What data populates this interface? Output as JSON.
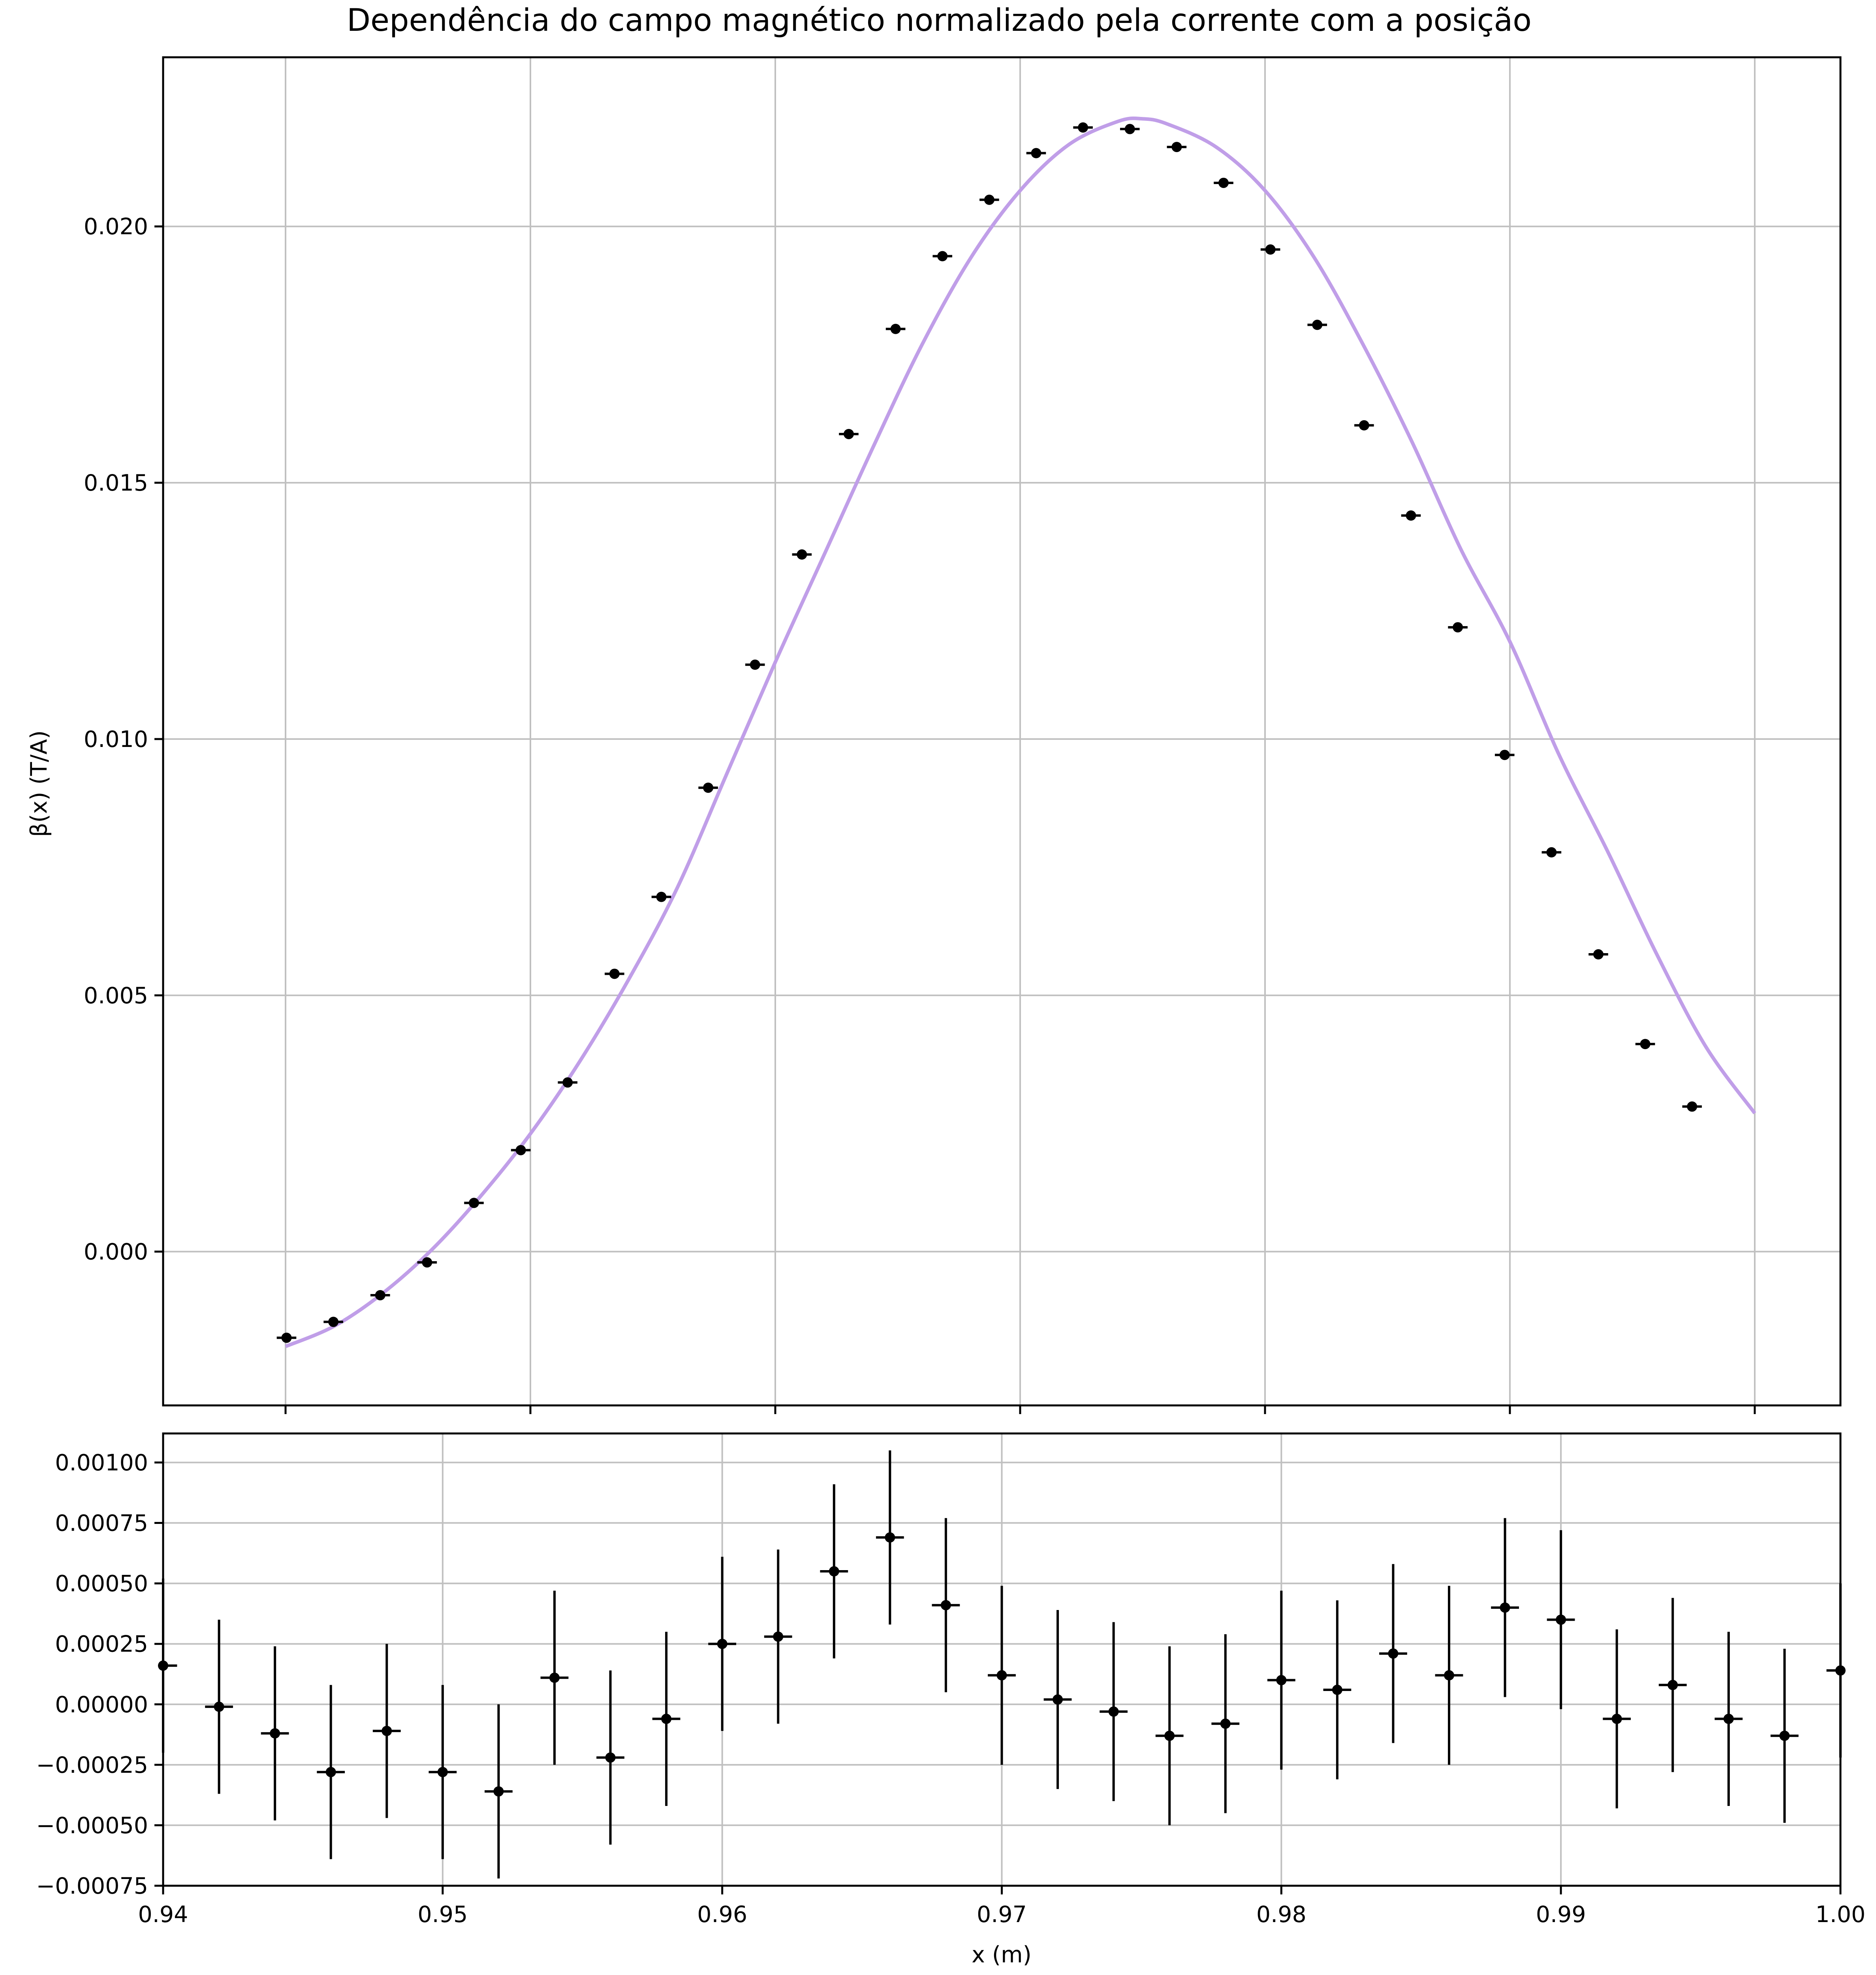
{
  "chart_data": [
    {
      "type": "scatter",
      "title": "Dependência do campo magnético normalizado pela corrente com a posição",
      "xlabel": "",
      "ylabel": "β(x) (T/A)",
      "xlim": [
        0.935,
        1.0035
      ],
      "ylim": [
        -0.003,
        0.0233
      ],
      "grid": true,
      "x_ticks": [
        0.94,
        0.95,
        0.96,
        0.97,
        0.98,
        0.99,
        1.0
      ],
      "y_ticks": [
        "0.000",
        "0.005",
        "0.010",
        "0.015",
        "0.020"
      ],
      "y_tick_values": [
        0.0,
        0.005,
        0.01,
        0.015,
        0.02
      ],
      "fit_color": "#c09ee8",
      "point_color": "#000000",
      "x_error": 0.0004,
      "points": {
        "x": [
          0.94,
          0.942,
          0.944,
          0.946,
          0.948,
          0.95,
          0.952,
          0.954,
          0.956,
          0.958,
          0.96,
          0.962,
          0.964,
          0.966,
          0.968,
          0.97,
          0.972,
          0.974,
          0.976,
          0.978,
          0.98,
          0.982,
          0.984,
          0.986,
          0.988,
          0.99,
          0.992,
          0.994,
          0.996,
          0.998,
          1.0
        ],
        "y": [
          -0.00168,
          -0.00137,
          -0.00085,
          -0.00021,
          0.00095,
          0.00198,
          0.0033,
          0.00542,
          0.00692,
          0.00905,
          0.01145,
          0.0136,
          0.01595,
          0.018,
          0.01942,
          0.02052,
          0.02143,
          0.02193,
          0.0219,
          0.02155,
          0.02085,
          0.01955,
          0.01808,
          0.01612,
          0.01436,
          0.01218,
          0.00969,
          0.00779,
          0.0058,
          0.00405,
          0.00283
        ]
      },
      "fit_curve": {
        "x": [
          0.94,
          0.942,
          0.944,
          0.946,
          0.948,
          0.95,
          0.952,
          0.954,
          0.956,
          0.958,
          0.96,
          0.962,
          0.964,
          0.966,
          0.968,
          0.97,
          0.972,
          0.974,
          0.975,
          0.976,
          0.978,
          0.98,
          0.982,
          0.984,
          0.986,
          0.988,
          0.99,
          0.992,
          0.994,
          0.996,
          0.998,
          1.0
        ],
        "y": [
          -0.00185,
          -0.00145,
          -0.0008,
          5e-05,
          0.0011,
          0.0023,
          0.0037,
          0.0053,
          0.0071,
          0.0093,
          0.0115,
          0.0136,
          0.0157,
          0.0177,
          0.0194,
          0.0207,
          0.0216,
          0.02205,
          0.0221,
          0.022,
          0.02155,
          0.0207,
          0.0194,
          0.0177,
          0.0158,
          0.0137,
          0.0119,
          0.0097,
          0.0078,
          0.0058,
          0.004,
          0.0027
        ]
      }
    },
    {
      "type": "scatter",
      "title": "",
      "xlabel": "x (m)",
      "ylabel": "",
      "xlim": [
        0.94,
        1.0
      ],
      "ylim": [
        -0.00075,
        0.00112
      ],
      "grid": true,
      "x_ticks": [
        "0.94",
        "0.95",
        "0.96",
        "0.97",
        "0.98",
        "0.99",
        "1.00"
      ],
      "x_tick_values": [
        0.94,
        0.95,
        0.96,
        0.97,
        0.98,
        0.99,
        1.0
      ],
      "y_ticks": [
        "−0.00075",
        "−0.00050",
        "−0.00025",
        "0.00000",
        "0.00025",
        "0.00050",
        "0.00075",
        "0.00100"
      ],
      "y_tick_values": [
        -0.00075,
        -0.0005,
        -0.00025,
        0.0,
        0.00025,
        0.0005,
        0.00075,
        0.001
      ],
      "x_error": 0.0005,
      "points": {
        "x": [
          0.94,
          0.942,
          0.944,
          0.946,
          0.948,
          0.95,
          0.952,
          0.954,
          0.956,
          0.958,
          0.96,
          0.962,
          0.964,
          0.966,
          0.968,
          0.97,
          0.972,
          0.974,
          0.976,
          0.978,
          0.98,
          0.982,
          0.984,
          0.986,
          0.988,
          0.99,
          0.992,
          0.994,
          0.996,
          0.998,
          1.0
        ],
        "y": [
          0.00016,
          -1e-05,
          -0.00012,
          -0.00028,
          -0.00011,
          -0.00028,
          -0.00036,
          0.00011,
          -0.00022,
          -6e-05,
          0.00025,
          0.00028,
          0.00055,
          0.00069,
          0.00041,
          0.00012,
          2e-05,
          -3e-05,
          -0.00013,
          -8e-05,
          0.0001,
          6e-05,
          0.00021,
          0.00012,
          0.0004,
          0.00035,
          -6e-05,
          8e-05,
          -6e-05,
          -0.00013,
          0.00014
        ],
        "y_error": [
          0.00036,
          0.00036,
          0.00036,
          0.00036,
          0.00036,
          0.00036,
          0.00036,
          0.00036,
          0.00036,
          0.00036,
          0.00036,
          0.00036,
          0.00036,
          0.00036,
          0.00036,
          0.00037,
          0.00037,
          0.00037,
          0.00037,
          0.00037,
          0.00037,
          0.00037,
          0.00037,
          0.00037,
          0.00037,
          0.00037,
          0.00037,
          0.00036,
          0.00036,
          0.00036,
          0.00036
        ]
      }
    }
  ]
}
